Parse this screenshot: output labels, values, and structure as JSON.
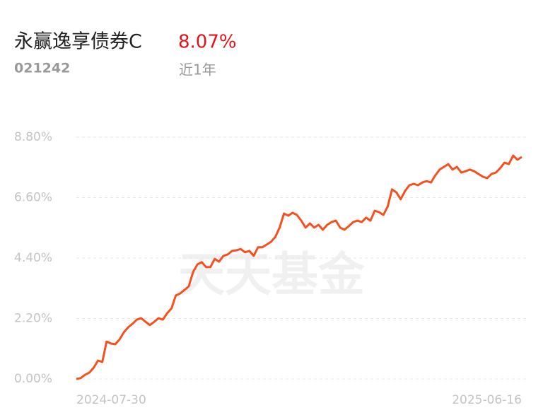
{
  "chart_data": {
    "type": "line",
    "title": "永赢逸享债券C",
    "return": "8.07%",
    "code": "021242",
    "period": "近1年",
    "watermark": "天天基金",
    "categories": [
      "2024-07-30",
      null,
      null,
      null,
      null,
      null,
      null,
      null,
      null,
      null,
      null,
      null,
      null,
      null,
      null,
      null,
      null,
      null,
      null,
      null,
      null,
      null,
      null,
      null,
      null,
      null,
      null,
      null,
      null,
      null,
      null,
      null,
      null,
      null,
      null,
      null,
      null,
      null,
      null,
      null,
      null,
      null,
      null,
      null,
      null,
      null,
      null,
      null,
      null,
      null,
      null,
      null,
      null,
      null,
      null,
      null,
      null,
      null,
      null,
      null,
      null,
      null,
      null,
      null,
      null,
      null,
      null,
      null,
      null,
      null,
      null,
      null,
      null,
      null,
      null,
      null,
      null,
      null,
      null,
      null,
      null,
      null,
      null,
      null,
      null,
      null,
      null,
      null,
      null,
      null,
      null,
      null,
      null,
      null,
      null,
      null,
      null,
      null,
      null,
      null,
      null,
      null,
      null,
      "2025-06-16"
    ],
    "series": [
      {
        "color": "#f5501e",
        "values": [
          0,
          0.03,
          0.15,
          0.23,
          0.41,
          0.67,
          0.62,
          1.36,
          1.29,
          1.26,
          1.44,
          1.7,
          1.88,
          2.01,
          2.16,
          2.21,
          2.08,
          1.96,
          2.08,
          2.21,
          2.16,
          2.39,
          2.57,
          3.04,
          3.11,
          3.24,
          3.37,
          3.89,
          4.17,
          4.25,
          4.07,
          4.07,
          4.37,
          4.27,
          4.48,
          4.53,
          4.66,
          4.68,
          4.73,
          4.61,
          4.66,
          4.48,
          4.79,
          4.79,
          4.89,
          4.99,
          5.17,
          5.51,
          6.02,
          5.94,
          6.05,
          5.97,
          5.76,
          5.51,
          5.66,
          5.51,
          5.61,
          5.43,
          5.61,
          5.71,
          5.76,
          5.51,
          5.43,
          5.56,
          5.71,
          5.76,
          5.71,
          5.87,
          5.76,
          6.12,
          6.07,
          5.97,
          6.28,
          6.9,
          6.79,
          6.54,
          6.84,
          7.05,
          7.1,
          7.05,
          7.15,
          7.2,
          7.15,
          7.41,
          7.62,
          7.72,
          7.82,
          7.62,
          7.72,
          7.51,
          7.56,
          7.62,
          7.56,
          7.46,
          7.36,
          7.31,
          7.46,
          7.51,
          7.67,
          7.87,
          7.82,
          8.13,
          7.98,
          8.08
        ]
      }
    ],
    "ylim": [
      0,
      8.8
    ],
    "yticks": [
      {
        "value": 0,
        "label": "0.00%"
      },
      {
        "value": 2.2,
        "label": "2.20%"
      },
      {
        "value": 4.4,
        "label": "4.40%"
      },
      {
        "value": 6.6,
        "label": "6.60%"
      },
      {
        "value": 8.8,
        "label": "8.80%"
      }
    ],
    "grid": true
  }
}
